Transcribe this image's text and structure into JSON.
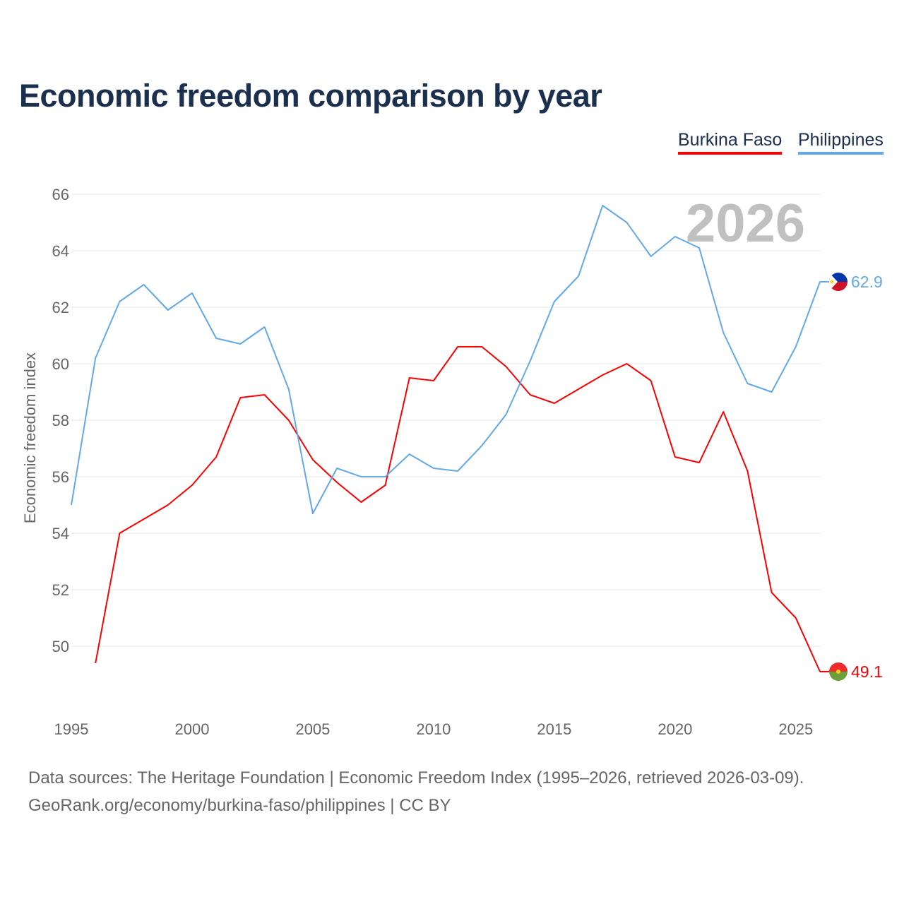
{
  "title": "Economic freedom comparison by year",
  "footer": {
    "line1": "Data sources: The Heritage Foundation | Economic Freedom Index (1995–2026, retrieved 2026-03-09).",
    "line2": "GeoRank.org/economy/burkina-faso/philippines | CC BY"
  },
  "chart_data": {
    "type": "line",
    "title": "Economic freedom comparison by year",
    "ylabel": "Economic freedom index",
    "xlabel": "",
    "year_watermark": "2026",
    "xlim": [
      1995,
      2026
    ],
    "ylim": [
      48,
      66
    ],
    "x_ticks": [
      "1995",
      "2000",
      "2005",
      "2010",
      "2015",
      "2020",
      "2025"
    ],
    "y_ticks": [
      "50",
      "52",
      "54",
      "56",
      "58",
      "60",
      "62",
      "64",
      "66"
    ],
    "grid": true,
    "legend": "top-right",
    "series": [
      {
        "name": "Burkina Faso",
        "color": "#ff0000",
        "end_label": "49.1",
        "x": [
          1996,
          1997,
          1998,
          1999,
          2000,
          2001,
          2002,
          2003,
          2004,
          2005,
          2006,
          2007,
          2008,
          2009,
          2010,
          2011,
          2012,
          2013,
          2014,
          2015,
          2016,
          2017,
          2018,
          2019,
          2020,
          2021,
          2022,
          2023,
          2024,
          2025,
          2026
        ],
        "values": [
          49.4,
          54.0,
          54.5,
          55.0,
          55.7,
          56.7,
          58.8,
          58.9,
          58.0,
          56.6,
          55.8,
          55.1,
          55.7,
          59.5,
          59.4,
          60.6,
          60.6,
          59.9,
          58.9,
          58.6,
          59.1,
          59.6,
          60.0,
          59.4,
          56.7,
          56.5,
          58.3,
          56.2,
          51.9,
          51.0,
          49.1
        ]
      },
      {
        "name": "Philippines",
        "color": "#62a8ea",
        "end_label": "62.9",
        "x": [
          1995,
          1996,
          1997,
          1998,
          1999,
          2000,
          2001,
          2002,
          2003,
          2004,
          2005,
          2006,
          2007,
          2008,
          2009,
          2010,
          2011,
          2012,
          2013,
          2014,
          2015,
          2016,
          2017,
          2018,
          2019,
          2020,
          2021,
          2022,
          2023,
          2024,
          2025,
          2026
        ],
        "values": [
          55.0,
          60.2,
          62.2,
          62.8,
          61.9,
          62.5,
          60.9,
          60.7,
          61.3,
          59.1,
          54.7,
          56.3,
          56.0,
          56.0,
          56.8,
          56.3,
          56.2,
          57.1,
          58.2,
          60.1,
          62.2,
          63.1,
          65.6,
          65.0,
          63.8,
          64.5,
          64.1,
          61.1,
          59.3,
          59.0,
          60.6,
          62.9
        ]
      }
    ]
  }
}
